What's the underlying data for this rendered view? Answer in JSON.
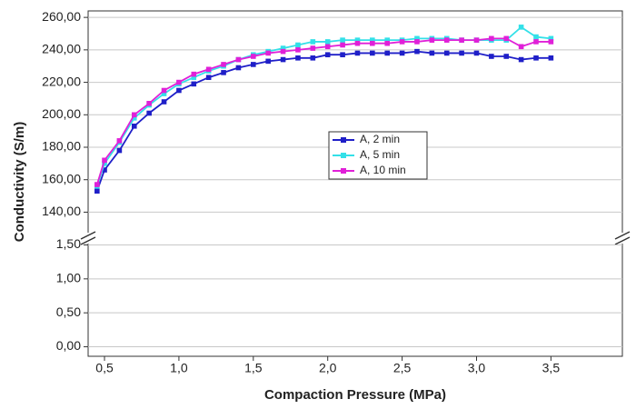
{
  "chart_data": {
    "type": "line",
    "y_label": "Conductivity (S/m)",
    "x_label": "Compaction Pressure (MPa)",
    "x": [
      0.45,
      0.5,
      0.6,
      0.7,
      0.8,
      0.9,
      1.0,
      1.1,
      1.2,
      1.3,
      1.4,
      1.5,
      1.6,
      1.7,
      1.8,
      1.9,
      2.0,
      2.1,
      2.2,
      2.3,
      2.4,
      2.5,
      2.6,
      2.7,
      2.8,
      2.9,
      3.0,
      3.1,
      3.2,
      3.3,
      3.4,
      3.5
    ],
    "series": [
      {
        "name": "A, 2 min",
        "color": "#1f1fc8",
        "values": [
          153,
          166,
          178,
          193,
          201,
          208,
          215,
          219,
          223,
          226,
          229,
          231,
          233,
          234,
          235,
          235,
          237,
          237,
          238,
          238,
          238,
          238,
          239,
          238,
          238,
          238,
          238,
          236,
          236,
          234,
          235,
          235
        ]
      },
      {
        "name": "A, 5 min",
        "color": "#33e0e8",
        "values": [
          156,
          170,
          183,
          198,
          206,
          213,
          219,
          223,
          227,
          230,
          234,
          237,
          239,
          241,
          243,
          245,
          245,
          246,
          246,
          246,
          246,
          246,
          247,
          247,
          247,
          246,
          246,
          246,
          246,
          254,
          248,
          247
        ]
      },
      {
        "name": "A, 10 min",
        "color": "#e020d8",
        "values": [
          157,
          172,
          184,
          200,
          207,
          215,
          220,
          225,
          228,
          231,
          234,
          236,
          238,
          239,
          240,
          241,
          242,
          243,
          244,
          244,
          244,
          245,
          245,
          246,
          246,
          246,
          246,
          247,
          247,
          242,
          245,
          245
        ]
      }
    ],
    "xlim": [
      0.39,
      3.98
    ],
    "xticks": [
      {
        "value": 0.5,
        "label": "0,5"
      },
      {
        "value": 1.0,
        "label": "1,0"
      },
      {
        "value": 1.5,
        "label": "1,5"
      },
      {
        "value": 2.0,
        "label": "2,0"
      },
      {
        "value": 2.5,
        "label": "2,5"
      },
      {
        "value": 3.0,
        "label": "3,0"
      },
      {
        "value": 3.5,
        "label": "3,5"
      }
    ],
    "ylim": [
      124,
      264
    ],
    "yticks": [
      {
        "value": 140,
        "label": "140,00"
      },
      {
        "value": 160,
        "label": "160,00"
      },
      {
        "value": 180,
        "label": "180,00"
      },
      {
        "value": 200,
        "label": "200,00"
      },
      {
        "value": 220,
        "label": "220,00"
      },
      {
        "value": 240,
        "label": "240,00"
      },
      {
        "value": 260,
        "label": "260,00"
      }
    ],
    "ylim_lower": [
      -0.14,
      1.6
    ],
    "yticks_lower": [
      {
        "value": 0,
        "label": "0,00"
      },
      {
        "value": 0.5,
        "label": "0,50"
      },
      {
        "value": 1.0,
        "label": "1,00"
      },
      {
        "value": 1.5,
        "label": "1,50"
      }
    ],
    "grid": true,
    "legend": "center"
  }
}
